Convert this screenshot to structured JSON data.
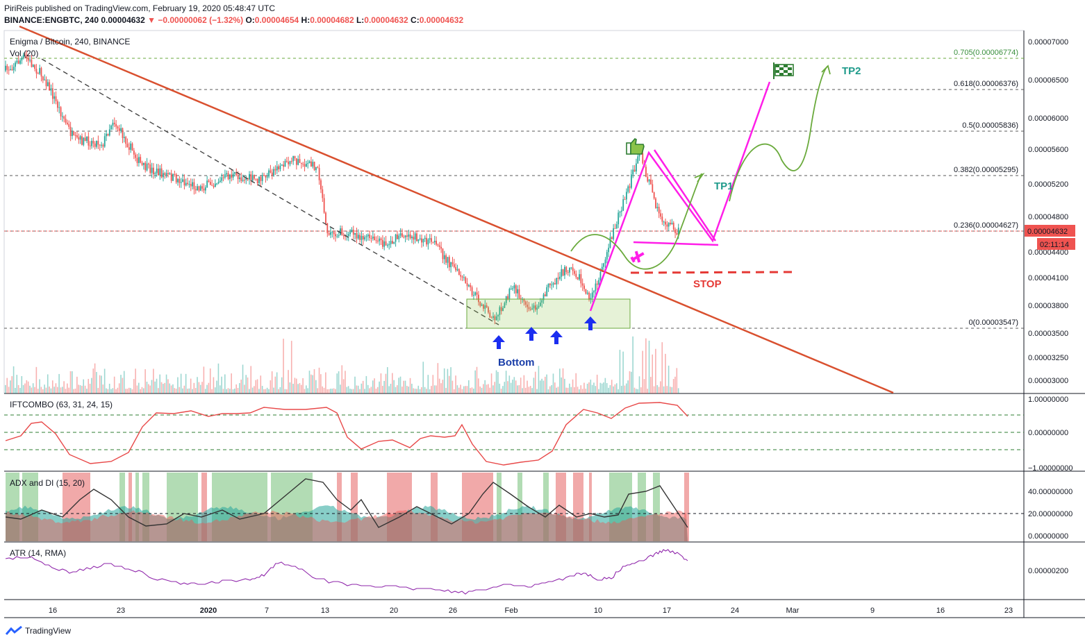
{
  "header": {
    "line1": "PiriReis published on TradingView.com, February 19, 2020 05:48:47 UTC",
    "symbol": "BINANCE:ENGBTC, 240",
    "last": "0.00004632",
    "change": "▼ −0.00000062 (−1.32%)",
    "o_label": "O:",
    "o": "0.00004654",
    "h_label": "H:",
    "h": "0.00004682",
    "l_label": "L:",
    "l": "0.00004632",
    "c_label": "C:",
    "c": "0.00004632"
  },
  "panes": {
    "price": {
      "title": "Enigma / Bitcoin, 240, BINANCE",
      "vol": "Vol (20)"
    },
    "ift": {
      "title": "IFTCOMBO (63, 31, 24, 15)"
    },
    "adx": {
      "title": "ADX and DI (15, 20)"
    },
    "atr": {
      "title": "ATR (14, RMA)"
    }
  },
  "price_axis": [
    "0.00007000",
    "0.00006500",
    "0.00006000",
    "0.00005600",
    "0.00005200",
    "0.00004800",
    "0.00004400",
    "0.00004100",
    "0.00003800",
    "0.00003500",
    "0.00003250",
    "0.00003000"
  ],
  "ift_axis": [
    "1.00000000",
    "0.00000000",
    "−1.00000000"
  ],
  "adx_axis": [
    "40.00000000",
    "20.00000000",
    "0.00000000"
  ],
  "atr_axis": [
    "0.00000200"
  ],
  "current_price": "0.00004632",
  "countdown": "02:11:14",
  "fib_levels": [
    {
      "label": "0.705(0.00006774)",
      "value": 6.774e-05
    },
    {
      "label": "0.618(0.00006376)",
      "value": 6.376e-05
    },
    {
      "label": "0.5(0.00005836)",
      "value": 5.836e-05
    },
    {
      "label": "0.382(0.00005295)",
      "value": 5.295e-05
    },
    {
      "label": "0.236(0.00004627)",
      "value": 4.627e-05
    },
    {
      "label": "0(0.00003547)",
      "value": 3.547e-05
    }
  ],
  "time_axis": [
    "16",
    "23",
    "2020",
    "7",
    "13",
    "20",
    "26",
    "Feb",
    "10",
    "17",
    "24",
    "Mar",
    "9",
    "16",
    "23"
  ],
  "annotations": {
    "tp1": "TP1",
    "tp2": "TP2",
    "stop": "STOP",
    "bottom": "Bottom"
  },
  "colors": {
    "up": "#26a69a",
    "down": "#ef5350",
    "trend": "#d9502f",
    "pattern": "#ff1ee8",
    "projection": "#6aaa3c",
    "stop": "#e53935",
    "fib": "#5a5a5a",
    "tp2": "#1e9a8a",
    "bottom": "#1a3ea8",
    "arrow": "#1b2ef0",
    "atr": "#8e24aa",
    "ift": "#e84848"
  },
  "chart_data": {
    "type": "candlestick",
    "pair": "ENGBTC",
    "interval": "240",
    "x_dates": [
      "Jan 16",
      "Jan 23",
      "2020-Jan 1",
      "Jan 7",
      "Jan 13",
      "Jan 20",
      "Jan 26",
      "Feb 1",
      "Feb 10",
      "Feb 17"
    ],
    "close_path": [
      {
        "t": "Dec 12",
        "v": 6.62e-05
      },
      {
        "t": "Dec 14",
        "v": 6.8e-05
      },
      {
        "t": "Dec 16",
        "v": 6.52e-05
      },
      {
        "t": "Dec 19",
        "v": 5.72e-05
      },
      {
        "t": "Dec 22",
        "v": 5.68e-05
      },
      {
        "t": "Dec 23",
        "v": 5.98e-05
      },
      {
        "t": "Dec 26",
        "v": 5.4e-05
      },
      {
        "t": "Jan 1",
        "v": 5.15e-05
      },
      {
        "t": "Jan 4",
        "v": 5.3e-05
      },
      {
        "t": "Jan 7",
        "v": 5.24e-05
      },
      {
        "t": "Jan 10",
        "v": 5.48e-05
      },
      {
        "t": "Jan 13",
        "v": 5.4e-05
      },
      {
        "t": "Jan 14",
        "v": 4.62e-05
      },
      {
        "t": "Jan 17",
        "v": 4.6e-05
      },
      {
        "t": "Jan 20",
        "v": 4.48e-05
      },
      {
        "t": "Jan 22",
        "v": 4.61e-05
      },
      {
        "t": "Jan 25",
        "v": 4.48e-05
      },
      {
        "t": "Jan 28",
        "v": 4.05e-05
      },
      {
        "t": "Jan 31",
        "v": 3.65e-05
      },
      {
        "t": "Feb 2",
        "v": 4e-05
      },
      {
        "t": "Feb 4",
        "v": 3.75e-05
      },
      {
        "t": "Feb 6",
        "v": 4.05e-05
      },
      {
        "t": "Feb 8",
        "v": 4.25e-05
      },
      {
        "t": "Feb 10",
        "v": 3.85e-05
      },
      {
        "t": "Feb 12",
        "v": 4.55e-05
      },
      {
        "t": "Feb 15",
        "v": 5.55e-05
      },
      {
        "t": "Feb 17",
        "v": 4.8e-05
      },
      {
        "t": "Feb 19",
        "v": 4.632e-05
      }
    ]
  }
}
